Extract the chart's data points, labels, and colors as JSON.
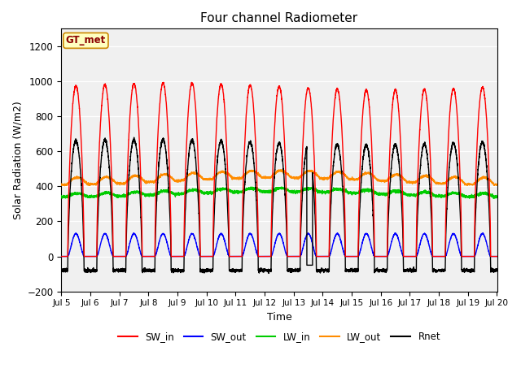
{
  "title": "Four channel Radiometer",
  "xlabel": "Time",
  "ylabel": "Solar Radiation (W/m2)",
  "ylim": [
    -200,
    1300
  ],
  "yticks": [
    -200,
    0,
    200,
    400,
    600,
    800,
    1000,
    1200
  ],
  "annotation": "GT_met",
  "bg_color": "#f0f0f0",
  "fig_bg": "#ffffff",
  "channels": {
    "SW_in": {
      "color": "#ff0000",
      "lw": 1.0
    },
    "SW_out": {
      "color": "#0000ff",
      "lw": 1.0
    },
    "LW_in": {
      "color": "#00cc00",
      "lw": 1.0
    },
    "LW_out": {
      "color": "#ff8c00",
      "lw": 1.0
    },
    "Rnet": {
      "color": "#000000",
      "lw": 1.0
    }
  },
  "xtick_days": [
    5,
    6,
    7,
    8,
    9,
    10,
    11,
    12,
    13,
    14,
    15,
    16,
    17,
    18,
    19,
    20
  ],
  "xtick_labels": [
    "Jul 5",
    "Jul 6",
    "Jul 7",
    "Jul 8",
    "Jul 9",
    "Jul 10",
    "Jul 11",
    "Jul 12",
    "Jul 13",
    "Jul 14",
    "Jul 15",
    "Jul 16",
    "Jul 17",
    "Jul 18",
    "Jul 19",
    "Jul 20"
  ]
}
